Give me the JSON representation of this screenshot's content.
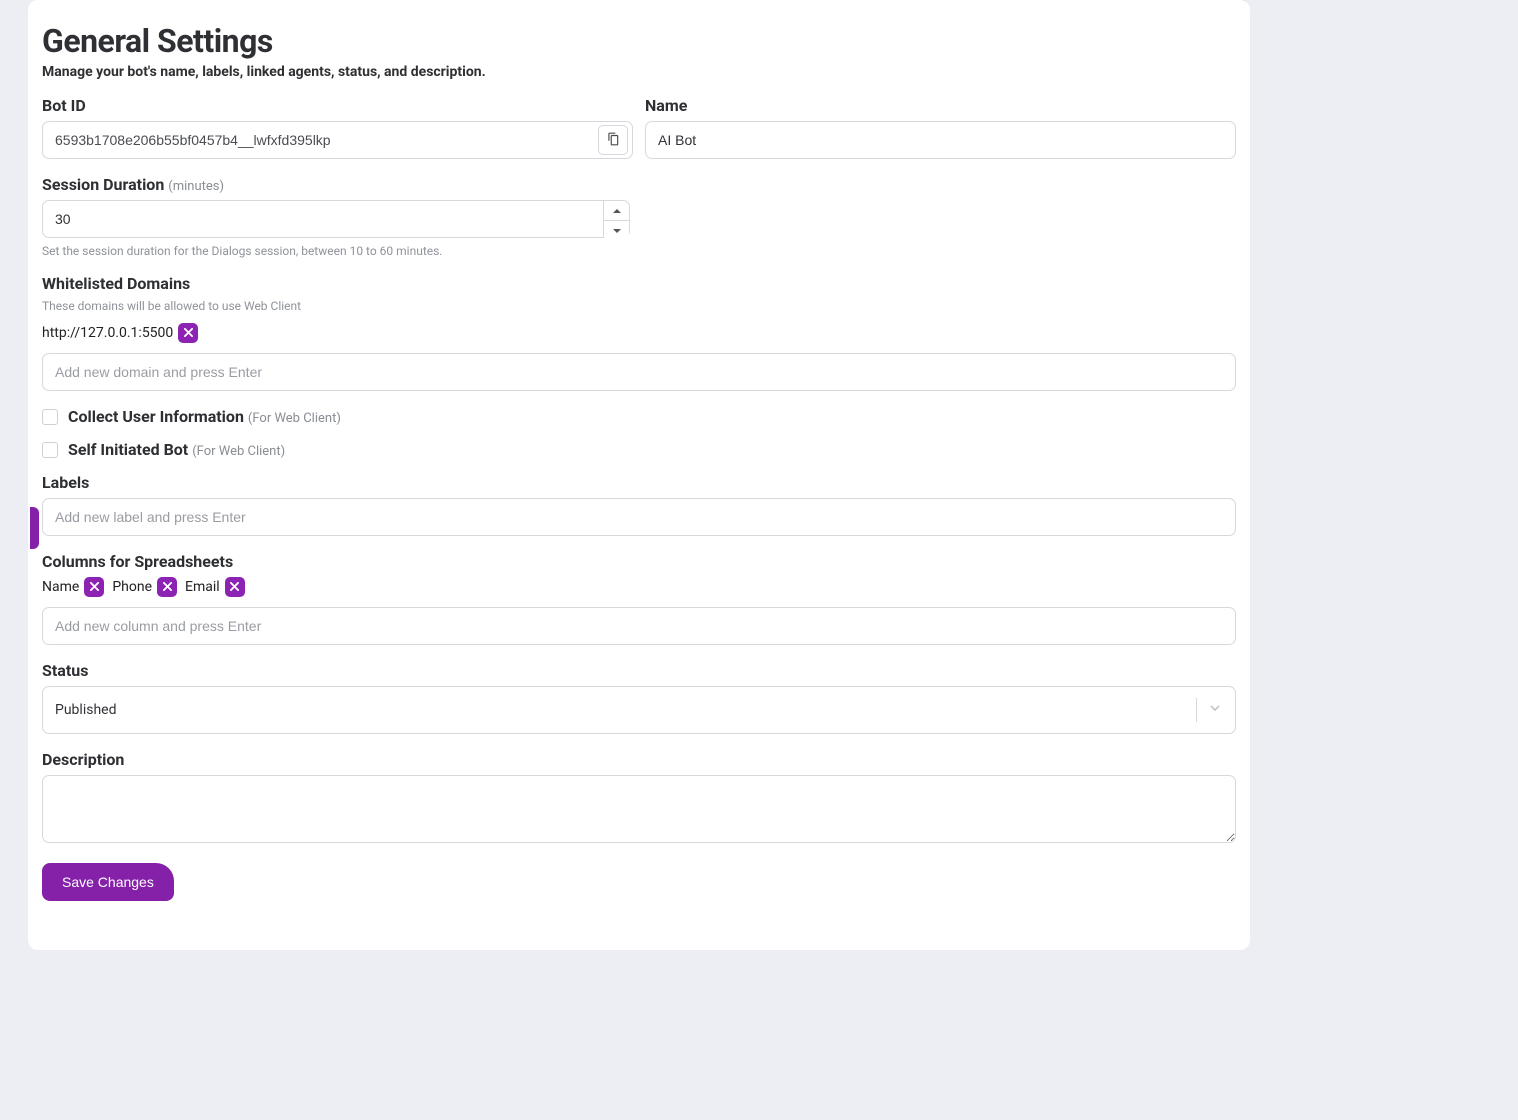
{
  "colors": {
    "accent": "#8421a8",
    "tag_remove_bg": "#8c23b3",
    "page_bg": "#eceef4",
    "card_bg": "#ffffff",
    "border": "#d6d8de",
    "text": "#2d2f33",
    "muted": "#8a8d94"
  },
  "page": {
    "title": "General Settings",
    "subtitle": "Manage your bot's name, labels, linked agents, status, and description."
  },
  "bot_id": {
    "label": "Bot ID",
    "value": "6593b1708e206b55bf0457b4__lwfxfd395lkp"
  },
  "name": {
    "label": "Name",
    "value": "AI Bot"
  },
  "session": {
    "label": "Session Duration",
    "unit": "(minutes)",
    "value": "30",
    "hint": "Set the session duration for the Dialogs session, between 10 to 60 minutes."
  },
  "whitelist": {
    "label": "Whitelisted Domains",
    "hint": "These domains will be allowed to use Web Client",
    "domains": [
      "http://127.0.0.1:5500"
    ],
    "placeholder": "Add new domain and press Enter"
  },
  "collect_user": {
    "label": "Collect User Information",
    "sub": "(For Web Client)",
    "checked": false
  },
  "self_initiated": {
    "label": "Self Initiated Bot",
    "sub": "(For Web Client)",
    "checked": false
  },
  "labels": {
    "label": "Labels",
    "placeholder": "Add new label and press Enter",
    "items": []
  },
  "columns": {
    "label": "Columns for Spreadsheets",
    "items": [
      "Name",
      "Phone",
      "Email"
    ],
    "placeholder": "Add new column and press Enter"
  },
  "status": {
    "label": "Status",
    "value": "Published"
  },
  "description": {
    "label": "Description",
    "value": ""
  },
  "save": {
    "label": "Save Changes"
  }
}
